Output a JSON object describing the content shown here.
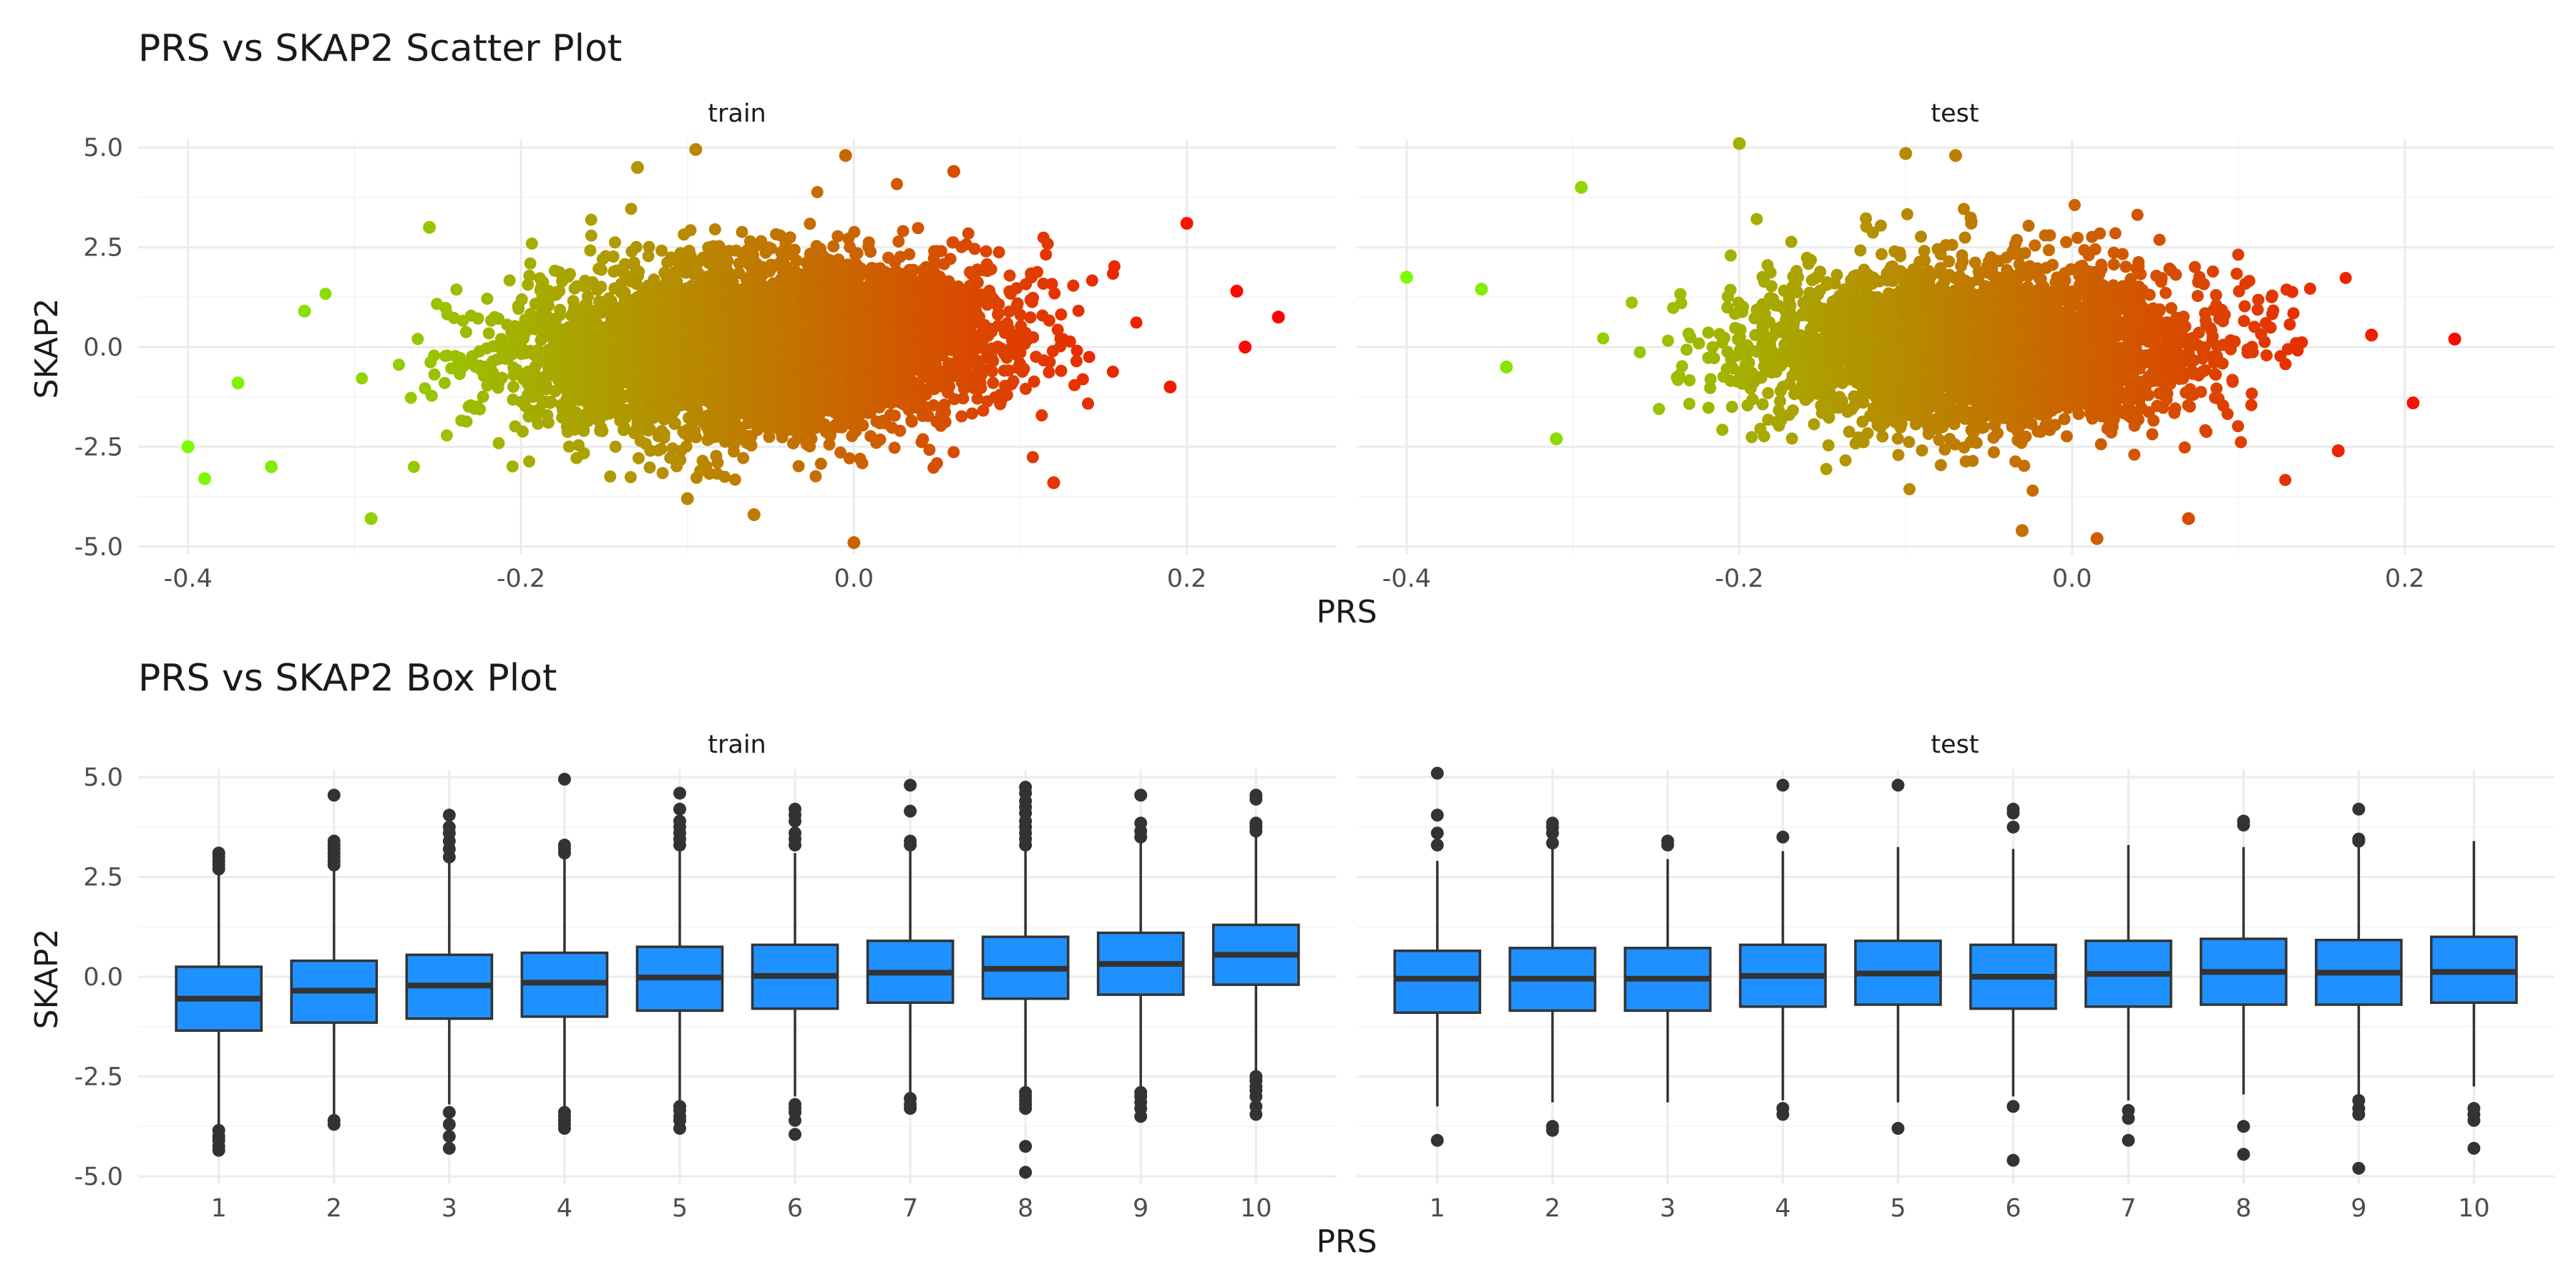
{
  "chart_data": [
    {
      "type": "scatter",
      "title": "PRS vs SKAP2 Scatter Plot",
      "xlabel": "PRS",
      "ylabel": "SKAP2",
      "facets": [
        "train",
        "test"
      ],
      "xlim": [
        -0.43,
        0.29
      ],
      "ylim": [
        -5.2,
        5.2
      ],
      "x_ticks": [
        -0.4,
        -0.2,
        0.0,
        0.2
      ],
      "y_ticks": [
        -5.0,
        -2.5,
        0.0,
        2.5,
        5.0
      ],
      "x_tick_labels": [
        "-0.4",
        "-0.2",
        "0.0",
        "0.2"
      ],
      "y_tick_labels": [
        "-5.0",
        "-2.5",
        "0.0",
        "2.5",
        "5.0"
      ],
      "color_gradient": {
        "low": "#7cfc00",
        "high": "#ff0000"
      },
      "grid": true,
      "note": "Dense point cloud; individual points approximated. Bulk spans PRS about -0.25 to 0.15, SKAP2 about -3.5 to 3.5; color maps to PRS.",
      "series": [
        {
          "name": "train",
          "points": [
            {
              "x": -0.4,
              "y": -2.5
            },
            {
              "x": -0.39,
              "y": -3.3
            },
            {
              "x": -0.35,
              "y": -3.0
            },
            {
              "x": -0.29,
              "y": -4.3
            },
            {
              "x": -0.255,
              "y": 3.0
            },
            {
              "x": -0.13,
              "y": 4.5
            },
            {
              "x": -0.095,
              "y": 4.95
            },
            {
              "x": -0.005,
              "y": 4.8
            },
            {
              "x": 0.0,
              "y": -4.9
            },
            {
              "x": -0.1,
              "y": -3.8
            },
            {
              "x": 0.2,
              "y": 3.1
            },
            {
              "x": 0.23,
              "y": 1.4
            },
            {
              "x": 0.255,
              "y": 0.75
            },
            {
              "x": 0.235,
              "y": 0.0
            },
            {
              "x": 0.19,
              "y": -1.0
            },
            {
              "x": 0.12,
              "y": -3.4
            },
            {
              "x": -0.37,
              "y": -0.9
            },
            {
              "x": -0.33,
              "y": 0.9
            },
            {
              "x": 0.06,
              "y": 4.4
            },
            {
              "x": -0.06,
              "y": -4.2
            }
          ]
        },
        {
          "name": "test",
          "points": [
            {
              "x": -0.4,
              "y": 1.75
            },
            {
              "x": -0.355,
              "y": 1.45
            },
            {
              "x": -0.295,
              "y": 4.0
            },
            {
              "x": -0.2,
              "y": 5.1
            },
            {
              "x": -0.1,
              "y": 4.85
            },
            {
              "x": -0.07,
              "y": 4.8
            },
            {
              "x": 0.23,
              "y": 0.2
            },
            {
              "x": 0.205,
              "y": -1.4
            },
            {
              "x": 0.07,
              "y": -4.3
            },
            {
              "x": -0.03,
              "y": -4.6
            },
            {
              "x": 0.015,
              "y": -4.8
            },
            {
              "x": -0.34,
              "y": -0.5
            },
            {
              "x": -0.31,
              "y": -2.3
            },
            {
              "x": 0.18,
              "y": 0.3
            },
            {
              "x": 0.16,
              "y": -2.6
            }
          ]
        }
      ]
    },
    {
      "type": "box",
      "title": "PRS vs SKAP2 Box Plot",
      "xlabel": "PRS",
      "ylabel": "SKAP2",
      "facets": [
        "train",
        "test"
      ],
      "ylim": [
        -5.2,
        5.2
      ],
      "categories": [
        "1",
        "2",
        "3",
        "4",
        "5",
        "6",
        "7",
        "8",
        "9",
        "10"
      ],
      "y_ticks": [
        -5.0,
        -2.5,
        0.0,
        2.5,
        5.0
      ],
      "y_tick_labels": [
        "-5.0",
        "-2.5",
        "0.0",
        "2.5",
        "5.0"
      ],
      "box_color": "#1e90ff",
      "grid": true,
      "series": [
        {
          "name": "train",
          "boxes": [
            {
              "category": "1",
              "q1": -1.35,
              "median": -0.55,
              "q3": 0.25,
              "whisker_low": -3.7,
              "whisker_high": 2.6,
              "outliers": [
                -4.35,
                -4.25,
                -4.1,
                -4.0,
                -3.85,
                2.7,
                2.8,
                2.9,
                3.0,
                3.1
              ]
            },
            {
              "category": "2",
              "q1": -1.15,
              "median": -0.35,
              "q3": 0.4,
              "whisker_low": -3.45,
              "whisker_high": 2.7,
              "outliers": [
                -3.7,
                -3.6,
                2.8,
                2.9,
                3.0,
                3.1,
                3.2,
                3.3,
                3.4,
                4.55
              ]
            },
            {
              "category": "3",
              "q1": -1.05,
              "median": -0.22,
              "q3": 0.55,
              "whisker_low": -3.2,
              "whisker_high": 2.9,
              "outliers": [
                -4.3,
                -4.0,
                -3.7,
                -3.4,
                3.0,
                3.2,
                3.4,
                3.6,
                3.75,
                4.05
              ]
            },
            {
              "category": "4",
              "q1": -1.0,
              "median": -0.15,
              "q3": 0.6,
              "whisker_low": -3.3,
              "whisker_high": 2.95,
              "outliers": [
                -3.8,
                -3.7,
                -3.6,
                -3.5,
                -3.4,
                3.1,
                3.2,
                3.3,
                4.95
              ]
            },
            {
              "category": "5",
              "q1": -0.85,
              "median": -0.02,
              "q3": 0.75,
              "whisker_low": -3.1,
              "whisker_high": 3.15,
              "outliers": [
                -3.8,
                -3.6,
                -3.5,
                -3.35,
                -3.25,
                3.3,
                3.45,
                3.6,
                3.75,
                3.9,
                4.2,
                4.6
              ]
            },
            {
              "category": "6",
              "q1": -0.8,
              "median": 0.02,
              "q3": 0.8,
              "whisker_low": -3.0,
              "whisker_high": 3.1,
              "outliers": [
                -3.95,
                -3.6,
                -3.4,
                -3.3,
                -3.2,
                3.3,
                3.45,
                3.6,
                3.9,
                4.05,
                4.2
              ]
            },
            {
              "category": "7",
              "q1": -0.65,
              "median": 0.1,
              "q3": 0.9,
              "whisker_low": -2.9,
              "whisker_high": 3.15,
              "outliers": [
                -3.3,
                -3.2,
                -3.05,
                3.3,
                3.4,
                4.15,
                4.8
              ]
            },
            {
              "category": "8",
              "q1": -0.55,
              "median": 0.2,
              "q3": 1.0,
              "whisker_low": -2.8,
              "whisker_high": 3.2,
              "outliers": [
                -4.9,
                -4.25,
                -3.3,
                -3.2,
                -3.1,
                -3.0,
                -2.9,
                3.3,
                3.45,
                3.6,
                3.75,
                3.9,
                4.1,
                4.25,
                4.4,
                4.6,
                4.75
              ]
            },
            {
              "category": "9",
              "q1": -0.45,
              "median": 0.32,
              "q3": 1.1,
              "whisker_low": -2.75,
              "whisker_high": 3.4,
              "outliers": [
                -3.5,
                -3.3,
                -3.15,
                -3.0,
                -2.9,
                3.5,
                3.65,
                3.85,
                4.55
              ]
            },
            {
              "category": "10",
              "q1": -0.2,
              "median": 0.55,
              "q3": 1.3,
              "whisker_low": -2.4,
              "whisker_high": 3.55,
              "outliers": [
                -3.45,
                -3.25,
                -3.0,
                -2.85,
                -2.75,
                -2.6,
                -2.5,
                3.65,
                3.75,
                3.85,
                4.45,
                4.55
              ]
            }
          ]
        },
        {
          "name": "test",
          "boxes": [
            {
              "category": "1",
              "q1": -0.9,
              "median": -0.05,
              "q3": 0.65,
              "whisker_low": -3.25,
              "whisker_high": 2.9,
              "outliers": [
                -4.1,
                3.3,
                3.6,
                4.05,
                5.1
              ]
            },
            {
              "category": "2",
              "q1": -0.85,
              "median": -0.05,
              "q3": 0.72,
              "whisker_low": -3.15,
              "whisker_high": 3.2,
              "outliers": [
                -3.85,
                -3.75,
                3.35,
                3.6,
                3.75,
                3.85
              ]
            },
            {
              "category": "3",
              "q1": -0.85,
              "median": -0.05,
              "q3": 0.72,
              "whisker_low": -3.15,
              "whisker_high": 2.95,
              "outliers": [
                3.3,
                3.4
              ]
            },
            {
              "category": "4",
              "q1": -0.75,
              "median": 0.02,
              "q3": 0.8,
              "whisker_low": -3.1,
              "whisker_high": 3.15,
              "outliers": [
                -3.45,
                -3.3,
                3.5,
                4.8
              ]
            },
            {
              "category": "5",
              "q1": -0.7,
              "median": 0.08,
              "q3": 0.9,
              "whisker_low": -3.15,
              "whisker_high": 3.25,
              "outliers": [
                -3.8,
                4.8
              ]
            },
            {
              "category": "6",
              "q1": -0.8,
              "median": 0.0,
              "q3": 0.8,
              "whisker_low": -3.0,
              "whisker_high": 3.2,
              "outliers": [
                -4.6,
                -3.25,
                3.75,
                4.1,
                4.2
              ]
            },
            {
              "category": "7",
              "q1": -0.75,
              "median": 0.07,
              "q3": 0.9,
              "whisker_low": -3.1,
              "whisker_high": 3.3,
              "outliers": [
                -4.1,
                -3.55,
                -3.35
              ]
            },
            {
              "category": "8",
              "q1": -0.7,
              "median": 0.12,
              "q3": 0.95,
              "whisker_low": -2.95,
              "whisker_high": 3.25,
              "outliers": [
                -4.45,
                -3.75,
                3.8,
                3.9
              ]
            },
            {
              "category": "9",
              "q1": -0.7,
              "median": 0.1,
              "q3": 0.92,
              "whisker_low": -2.95,
              "whisker_high": 3.25,
              "outliers": [
                -4.8,
                -3.45,
                -3.3,
                -3.1,
                3.4,
                3.45,
                4.2
              ]
            },
            {
              "category": "10",
              "q1": -0.65,
              "median": 0.12,
              "q3": 1.0,
              "whisker_low": -2.75,
              "whisker_high": 3.4,
              "outliers": [
                -4.3,
                -3.6,
                -3.45,
                -3.3
              ]
            }
          ]
        }
      ]
    }
  ]
}
